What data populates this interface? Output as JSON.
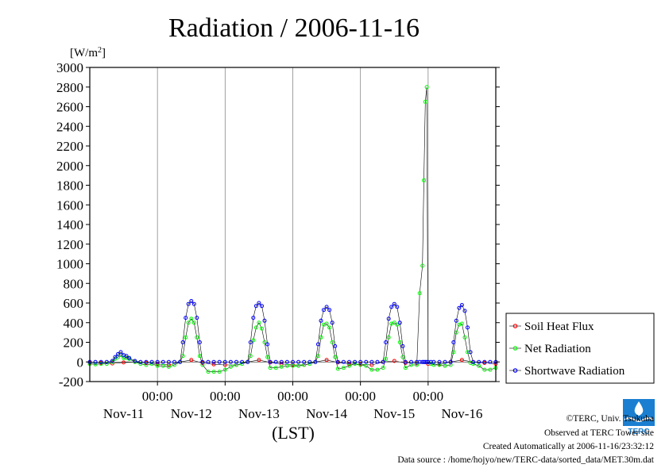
{
  "chart_data": {
    "type": "line",
    "title": "Radiation / 2006-11-16",
    "ylabel_unit_prefix": "[W/m",
    "ylabel_unit_sup": "2",
    "ylabel_unit_suffix": "]",
    "xlabel": "(LST)",
    "ylim": [
      -200,
      3000
    ],
    "y_ticks": [
      -200,
      0,
      200,
      400,
      600,
      800,
      1000,
      1200,
      1400,
      1600,
      1800,
      2000,
      2200,
      2400,
      2600,
      2800,
      3000
    ],
    "y_tick_labels": [
      "-200",
      "0",
      "200",
      "400",
      "600",
      "800",
      "1000",
      "1200",
      "1400",
      "1600",
      "1800",
      "2000",
      "2200",
      "2400",
      "2600",
      "2800",
      "3000"
    ],
    "x_unit": "hours since 2006-11-11 00:00 LST",
    "xlim": [
      0,
      144
    ],
    "x_ticks": [
      24,
      48,
      72,
      96,
      120
    ],
    "x_time_labels": [
      "00:00",
      "00:00",
      "00:00",
      "00:00",
      "00:00"
    ],
    "x_date_labels": [
      "Nov-11",
      "Nov-12",
      "Nov-13",
      "Nov-14",
      "Nov-15",
      "Nov-16"
    ],
    "x_date_positions": [
      12,
      36,
      60,
      84,
      108,
      132
    ],
    "grid": true,
    "legend_position": "right",
    "colors": {
      "soil": "#ff0000",
      "net": "#00ff00",
      "shortwave": "#0000ff",
      "line": "#000000",
      "grid": "#888888"
    },
    "series": [
      {
        "name": "Soil Heat Flux",
        "color": "#ff0000",
        "x": [
          0,
          4,
          8,
          12,
          16,
          20,
          24,
          28,
          32,
          36,
          40,
          44,
          48,
          52,
          56,
          60,
          64,
          68,
          72,
          76,
          80,
          84,
          88,
          92,
          96,
          100,
          104,
          108,
          112,
          116,
          120,
          124,
          128,
          132,
          136,
          140,
          144
        ],
        "y": [
          -10,
          -10,
          -15,
          -5,
          0,
          -10,
          -20,
          -30,
          0,
          20,
          -10,
          -25,
          -30,
          -30,
          0,
          20,
          -5,
          -20,
          -30,
          -30,
          0,
          20,
          -5,
          -20,
          -25,
          -30,
          0,
          10,
          -10,
          -15,
          -20,
          -25,
          0,
          20,
          0,
          -10,
          -20
        ]
      },
      {
        "name": "Net Radiation",
        "color": "#00ff00",
        "x": [
          0,
          2,
          4,
          6,
          8,
          9,
          10,
          11,
          12,
          13,
          14,
          16,
          18,
          20,
          22,
          24,
          26,
          28,
          30,
          32,
          33,
          34,
          35,
          36,
          37,
          38,
          39,
          40,
          42,
          44,
          46,
          48,
          50,
          52,
          54,
          56,
          57,
          58,
          59,
          60,
          61,
          62,
          63,
          64,
          66,
          68,
          70,
          72,
          74,
          76,
          78,
          80,
          81,
          82,
          83,
          84,
          85,
          86,
          87,
          88,
          90,
          92,
          94,
          96,
          98,
          100,
          102,
          104,
          105,
          106,
          107,
          108,
          109,
          110,
          111,
          112,
          114,
          116,
          117,
          118,
          118.5,
          119,
          119.5,
          120,
          121,
          122,
          124,
          126,
          128,
          129,
          130,
          131,
          132,
          133,
          134,
          135,
          136,
          138,
          140,
          142,
          144
        ],
        "y": [
          -20,
          -25,
          -20,
          -20,
          0,
          30,
          50,
          70,
          40,
          40,
          30,
          0,
          -20,
          -30,
          -20,
          -40,
          -40,
          -50,
          -30,
          0,
          60,
          250,
          400,
          440,
          400,
          250,
          60,
          -30,
          -100,
          -100,
          -100,
          -80,
          -50,
          -30,
          -20,
          0,
          60,
          220,
          350,
          400,
          340,
          200,
          50,
          -60,
          -60,
          -50,
          -40,
          -40,
          -40,
          -30,
          -20,
          0,
          60,
          250,
          380,
          390,
          350,
          200,
          50,
          -70,
          -60,
          -40,
          -20,
          -30,
          -40,
          -80,
          -80,
          -60,
          30,
          250,
          390,
          400,
          380,
          200,
          50,
          -60,
          -30,
          -30,
          700,
          980,
          1850,
          2650,
          2800,
          0,
          -20,
          -30,
          -30,
          -40,
          -30,
          100,
          300,
          380,
          390,
          250,
          100,
          -10,
          -20,
          -40,
          -80,
          -80,
          -60
        ]
      },
      {
        "name": "Shortwave Radiation",
        "color": "#0000ff",
        "x": [
          0,
          2,
          4,
          6,
          8,
          9,
          10,
          11,
          12,
          13,
          14,
          16,
          18,
          20,
          22,
          24,
          26,
          28,
          30,
          32,
          33,
          34,
          35,
          36,
          37,
          38,
          39,
          40,
          42,
          44,
          46,
          48,
          50,
          52,
          54,
          56,
          57,
          58,
          59,
          60,
          61,
          62,
          63,
          64,
          66,
          68,
          70,
          72,
          74,
          76,
          78,
          80,
          81,
          82,
          83,
          84,
          85,
          86,
          87,
          88,
          90,
          92,
          94,
          96,
          98,
          100,
          102,
          104,
          105,
          106,
          107,
          108,
          109,
          110,
          111,
          112,
          114,
          116,
          117,
          118,
          118.5,
          119,
          119.5,
          120,
          121,
          122,
          124,
          126,
          128,
          129,
          130,
          131,
          132,
          133,
          134,
          135,
          136,
          138,
          140,
          142,
          144
        ],
        "y": [
          0,
          0,
          0,
          0,
          10,
          50,
          80,
          100,
          70,
          60,
          40,
          10,
          0,
          0,
          0,
          0,
          0,
          0,
          0,
          0,
          200,
          450,
          590,
          620,
          590,
          450,
          200,
          0,
          0,
          0,
          0,
          0,
          0,
          0,
          0,
          0,
          200,
          450,
          570,
          600,
          570,
          420,
          180,
          0,
          0,
          0,
          0,
          0,
          0,
          0,
          0,
          0,
          180,
          420,
          530,
          560,
          530,
          400,
          160,
          0,
          0,
          0,
          0,
          0,
          0,
          0,
          0,
          0,
          200,
          440,
          560,
          590,
          560,
          400,
          160,
          0,
          0,
          0,
          0,
          0,
          0,
          0,
          0,
          0,
          0,
          0,
          0,
          0,
          0,
          200,
          420,
          550,
          580,
          520,
          350,
          100,
          0,
          0,
          0,
          0,
          0
        ]
      }
    ]
  },
  "credits": {
    "copyright": "©TERC, Univ. Tsukuba",
    "observed": "Observed at TERC Tower site",
    "created": "Created Automatically at 2006-11-16/23:32:12",
    "source": "Data source : /home/hojyo/new/TERC-data/sorted_data/MET.30m.dat"
  },
  "logo": {
    "text": "TERC",
    "color": "#1a7fd1"
  }
}
